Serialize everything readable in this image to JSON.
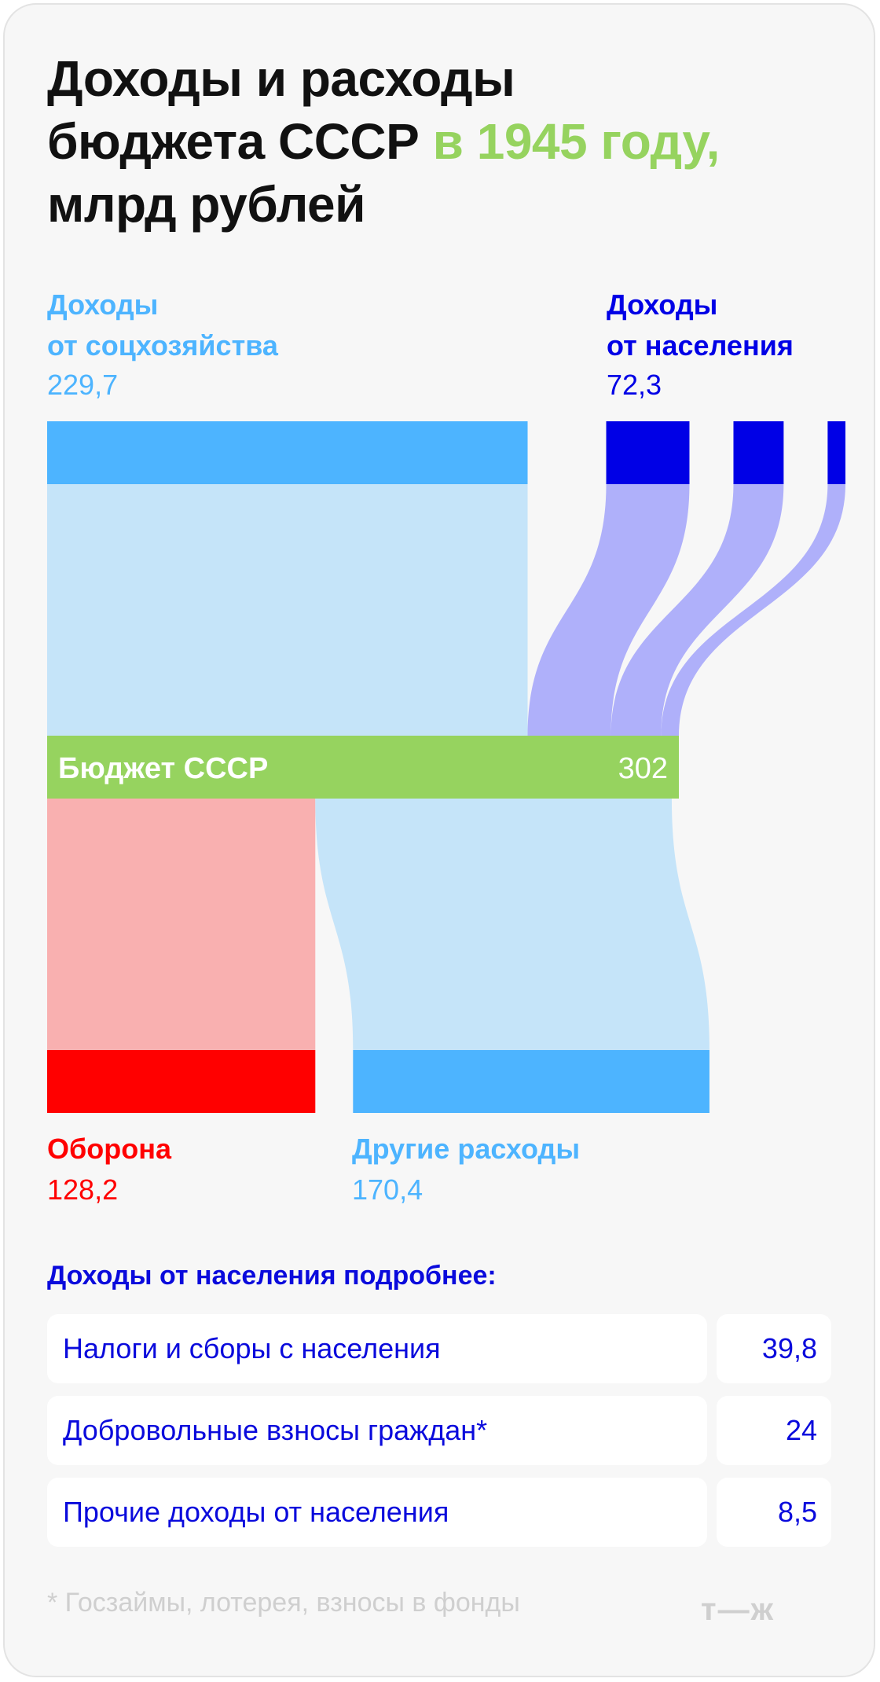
{
  "title": {
    "line1": "Доходы и расходы",
    "line2_a": "бюджета СССР ",
    "line2_b": "в 1945 году,",
    "line3": "млрд рублей"
  },
  "colors": {
    "soc": "#4db4ff",
    "soc_light": "#c5e4f9",
    "pop": "#0000e6",
    "pop_light": "#afb0fa",
    "budget": "#96d35f",
    "defense": "#ff0000",
    "defense_light": "#f9b0b0",
    "other": "#4db4ff",
    "other_light": "#c5e4f9"
  },
  "labels": {
    "soc_line1": "Доходы",
    "soc_line2": "от соцхозяйства",
    "soc_value": "229,7",
    "pop_line1": "Доходы",
    "pop_line2": "от населения",
    "pop_value": "72,3",
    "defense": "Оборона",
    "defense_value": "128,2",
    "other": "Другие расходы",
    "other_value": "170,4"
  },
  "chart_data": {
    "type": "sankey",
    "units": "млрд рублей",
    "hub": {
      "name": "Бюджет СССР",
      "value": 302,
      "value_label": "302"
    },
    "sources": [
      {
        "name": "Доходы от соцхозяйства",
        "value": 229.7
      },
      {
        "name": "Налоги и сборы с населения",
        "value": 39.8,
        "group": "Доходы от населения"
      },
      {
        "name": "Добровольные взносы граждан*",
        "value": 24,
        "group": "Доходы от населения"
      },
      {
        "name": "Прочие доходы от населения",
        "value": 8.5,
        "group": "Доходы от населения"
      }
    ],
    "targets": [
      {
        "name": "Оборона",
        "value": 128.2
      },
      {
        "name": "Другие расходы",
        "value": 170.4
      }
    ]
  },
  "details": {
    "heading": "Доходы от населения подробнее:",
    "rows": [
      {
        "label": "Налоги и сборы с населения",
        "value": "39,8"
      },
      {
        "label": "Добровольные взносы граждан*",
        "value": "24"
      },
      {
        "label": "Прочие доходы от населения",
        "value": "8,5"
      }
    ]
  },
  "footnote": "* Госзаймы, лотерея, взносы в фонды",
  "logo": "т—ж"
}
